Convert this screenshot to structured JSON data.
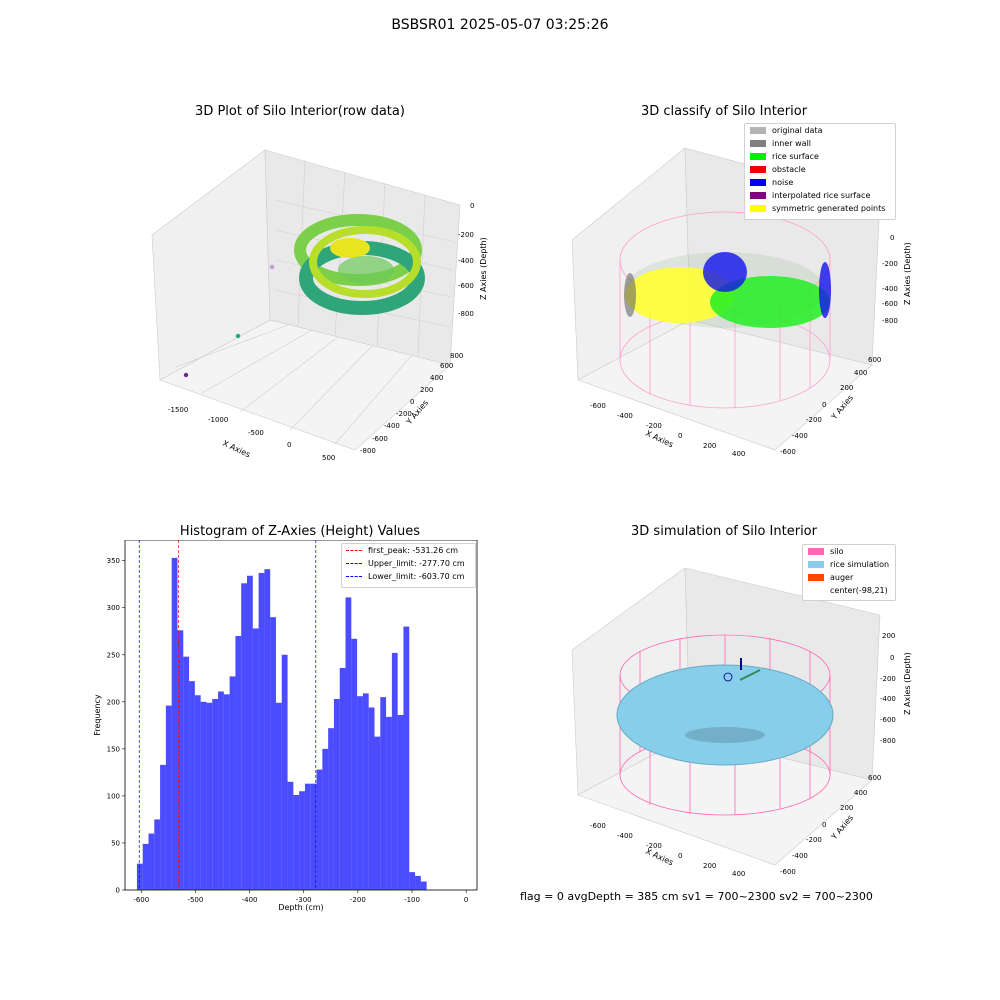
{
  "figure": {
    "suptitle": "BSBSR01 2025-05-07 03:25:26",
    "footer_text": "flag = 0     avgDepth = 385 cm  sv1 = 700~2300  sv2 = 700~2300"
  },
  "plot_raw": {
    "title": "3D Plot of Silo Interior(row data)",
    "xlabel": "X Axies",
    "ylabel": "Y Axies",
    "zlabel": "Z Axies (Depth)",
    "xticks": [
      "-1500",
      "-1000",
      "-500",
      "0",
      "500"
    ],
    "yticks": [
      "-800",
      "-600",
      "-400",
      "-200",
      "0",
      "200",
      "400",
      "600",
      "800"
    ],
    "zticks": [
      "0",
      "-200",
      "-400",
      "-600",
      "-800"
    ]
  },
  "plot_classify": {
    "title": "3D classify of Silo Interior",
    "xlabel": "X Axies",
    "ylabel": "Y Axies",
    "zlabel": "Z Axies (Depth)",
    "xticks": [
      "-600",
      "-400",
      "-200",
      "0",
      "200",
      "400"
    ],
    "yticks": [
      "-600",
      "-400",
      "-200",
      "0",
      "200",
      "400",
      "600"
    ],
    "zticks": [
      "0",
      "-200",
      "-400",
      "-600",
      "-800"
    ],
    "legend": [
      {
        "label": "original data",
        "color": "#b3b3b3"
      },
      {
        "label": "inner wall",
        "color": "#808080"
      },
      {
        "label": "rice surface",
        "color": "#00ee00"
      },
      {
        "label": "obstacle",
        "color": "#ee0000"
      },
      {
        "label": "noise",
        "color": "#0000ee"
      },
      {
        "label": "interpolated rice surface",
        "color": "#800080"
      },
      {
        "label": "symmetric generated points",
        "color": "#ffff00"
      }
    ]
  },
  "plot_sim": {
    "title": "3D simulation of Silo Interior",
    "xlabel": "X Axies",
    "ylabel": "Y Axies",
    "zlabel": "Z Axies (Depth)",
    "xticks": [
      "-600",
      "-400",
      "-200",
      "0",
      "200",
      "400"
    ],
    "yticks": [
      "-600",
      "-400",
      "-200",
      "0",
      "200",
      "400",
      "600"
    ],
    "zticks": [
      "200",
      "0",
      "-200",
      "-400",
      "-600",
      "-800"
    ],
    "legend": [
      {
        "label": "silo",
        "color": "#ff69b4"
      },
      {
        "label": "rice simulation",
        "color": "#87ceeb"
      },
      {
        "label": "auger",
        "color": "#ff4500"
      },
      {
        "label": "center(-98,21)",
        "color": "#ffffff"
      }
    ]
  },
  "chart_data": {
    "type": "bar",
    "title": "Histogram of Z-Axies (Height) Values",
    "xlabel": "Depth (cm)",
    "ylabel": "Frequency",
    "xlim": [
      -630,
      20
    ],
    "ylim": [
      0,
      372
    ],
    "xticks": [
      -600,
      -500,
      -400,
      -300,
      -200,
      -100,
      0
    ],
    "yticks": [
      0,
      50,
      100,
      150,
      200,
      250,
      300,
      350
    ],
    "bin_start": -608,
    "bin_width": 10.7,
    "values": [
      28,
      49,
      60,
      75,
      133,
      196,
      353,
      276,
      248,
      222,
      207,
      200,
      199,
      203,
      211,
      208,
      227,
      270,
      326,
      334,
      278,
      337,
      341,
      290,
      199,
      250,
      115,
      101,
      105,
      113,
      113,
      128,
      150,
      172,
      203,
      236,
      311,
      267,
      206,
      209,
      194,
      163,
      205,
      184,
      252,
      186,
      280,
      19,
      15,
      9
    ],
    "bar_color": "#0000ff",
    "vlines": [
      {
        "label": "first_peak: -531.26 cm",
        "x": -531.26,
        "color": "#ff0000"
      },
      {
        "label": "Upper_limit: -277.70 cm",
        "x": -277.7,
        "color": "#0000ff"
      },
      {
        "label": "Lower_limit: -603.70 cm",
        "x": -603.7,
        "color": "#0000ff"
      }
    ],
    "legend_position": "top-right"
  }
}
